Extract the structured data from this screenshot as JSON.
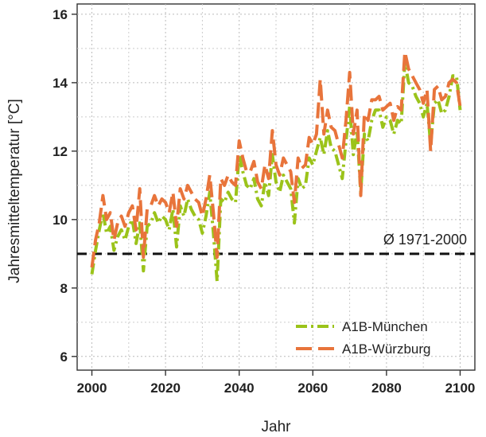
{
  "chart_data": {
    "type": "line",
    "xlabel": "Jahr",
    "ylabel": "Jahresmitteltemperatur [°C]",
    "xlim": [
      1996,
      2104
    ],
    "ylim": [
      5.6,
      16.3
    ],
    "x_ticks": [
      2000,
      2020,
      2040,
      2060,
      2080,
      2100
    ],
    "x_tick_labels": [
      "2000",
      "2020",
      "2040",
      "2060",
      "2080",
      "2100"
    ],
    "y_ticks": [
      6,
      8,
      10,
      12,
      14,
      16
    ],
    "y_tick_labels": [
      "6",
      "8",
      "10",
      "12",
      "14",
      "16"
    ],
    "grid": true,
    "legend_position": "bottom-right",
    "reference_line": {
      "y": 9.0,
      "label": "Ø 1971-2000",
      "color": "#111111"
    },
    "x": [
      2000,
      2001,
      2002,
      2003,
      2004,
      2005,
      2006,
      2007,
      2008,
      2009,
      2010,
      2011,
      2012,
      2013,
      2014,
      2015,
      2016,
      2017,
      2018,
      2019,
      2020,
      2021,
      2022,
      2023,
      2024,
      2025,
      2026,
      2027,
      2028,
      2029,
      2030,
      2031,
      2032,
      2033,
      2034,
      2035,
      2036,
      2037,
      2038,
      2039,
      2040,
      2041,
      2042,
      2043,
      2044,
      2045,
      2046,
      2047,
      2048,
      2049,
      2050,
      2051,
      2052,
      2053,
      2054,
      2055,
      2056,
      2057,
      2058,
      2059,
      2060,
      2061,
      2062,
      2063,
      2064,
      2065,
      2066,
      2067,
      2068,
      2069,
      2070,
      2071,
      2072,
      2073,
      2074,
      2075,
      2076,
      2077,
      2078,
      2079,
      2080,
      2081,
      2082,
      2083,
      2084,
      2085,
      2086,
      2087,
      2088,
      2089,
      2090,
      2091,
      2092,
      2093,
      2094,
      2095,
      2096,
      2097,
      2098,
      2099,
      2100
    ],
    "series": [
      {
        "name": "A1B-München",
        "color": "#9bc31a",
        "dash": "14,5,3,5",
        "values": [
          8.4,
          9.1,
          9.7,
          10.2,
          9.6,
          9.8,
          9.1,
          9.5,
          9.7,
          9.4,
          9.8,
          10.0,
          9.3,
          9.9,
          8.5,
          9.8,
          9.9,
          10.2,
          9.9,
          10.1,
          10.0,
          9.7,
          10.3,
          9.2,
          10.4,
          10.1,
          10.6,
          10.3,
          10.1,
          10.0,
          9.6,
          10.1,
          10.8,
          9.6,
          8.2,
          10.6,
          10.5,
          10.8,
          10.6,
          10.5,
          11.9,
          11.4,
          11.0,
          10.9,
          11.2,
          10.6,
          10.4,
          11.1,
          10.7,
          11.9,
          11.1,
          10.8,
          11.3,
          11.1,
          10.9,
          9.9,
          11.2,
          10.9,
          11.0,
          11.8,
          11.6,
          12.0,
          12.4,
          11.9,
          12.6,
          12.1,
          12.0,
          11.6,
          11.2,
          12.3,
          13.3,
          11.9,
          12.6,
          10.8,
          12.5,
          12.3,
          12.9,
          13.2,
          13.2,
          12.7,
          13.0,
          12.9,
          12.5,
          12.9,
          12.8,
          14.6,
          14.0,
          13.9,
          13.6,
          13.4,
          13.0,
          13.4,
          12.2,
          13.4,
          13.5,
          13.1,
          13.2,
          13.6,
          14.2,
          14.2,
          13.2
        ]
      },
      {
        "name": "A1B-Würzburg",
        "color": "#e8743b",
        "dash": "20,8",
        "values": [
          8.6,
          9.4,
          9.9,
          10.7,
          10.0,
          10.2,
          9.4,
          9.9,
          10.1,
          9.8,
          10.2,
          10.4,
          9.7,
          10.9,
          8.9,
          10.3,
          10.4,
          10.7,
          10.4,
          10.6,
          10.5,
          10.2,
          10.8,
          9.8,
          10.9,
          10.6,
          11.0,
          10.8,
          10.6,
          10.5,
          10.1,
          10.6,
          11.3,
          10.2,
          8.9,
          11.2,
          11.0,
          11.3,
          11.1,
          11.0,
          12.3,
          11.8,
          11.4,
          11.4,
          11.7,
          11.1,
          10.9,
          11.6,
          11.2,
          12.6,
          11.6,
          11.3,
          11.8,
          11.6,
          11.4,
          10.5,
          11.8,
          11.5,
          11.6,
          12.4,
          12.2,
          12.5,
          14.1,
          12.5,
          13.2,
          12.7,
          12.6,
          12.2,
          11.8,
          12.9,
          14.3,
          12.5,
          13.2,
          10.7,
          13.1,
          12.9,
          13.5,
          13.5,
          13.6,
          13.2,
          13.3,
          13.4,
          12.9,
          13.3,
          13.2,
          14.9,
          14.4,
          14.2,
          14.0,
          13.8,
          13.4,
          13.8,
          12.0,
          13.8,
          13.9,
          13.5,
          13.6,
          14.0,
          14.1,
          14.0,
          13.3
        ]
      }
    ]
  }
}
